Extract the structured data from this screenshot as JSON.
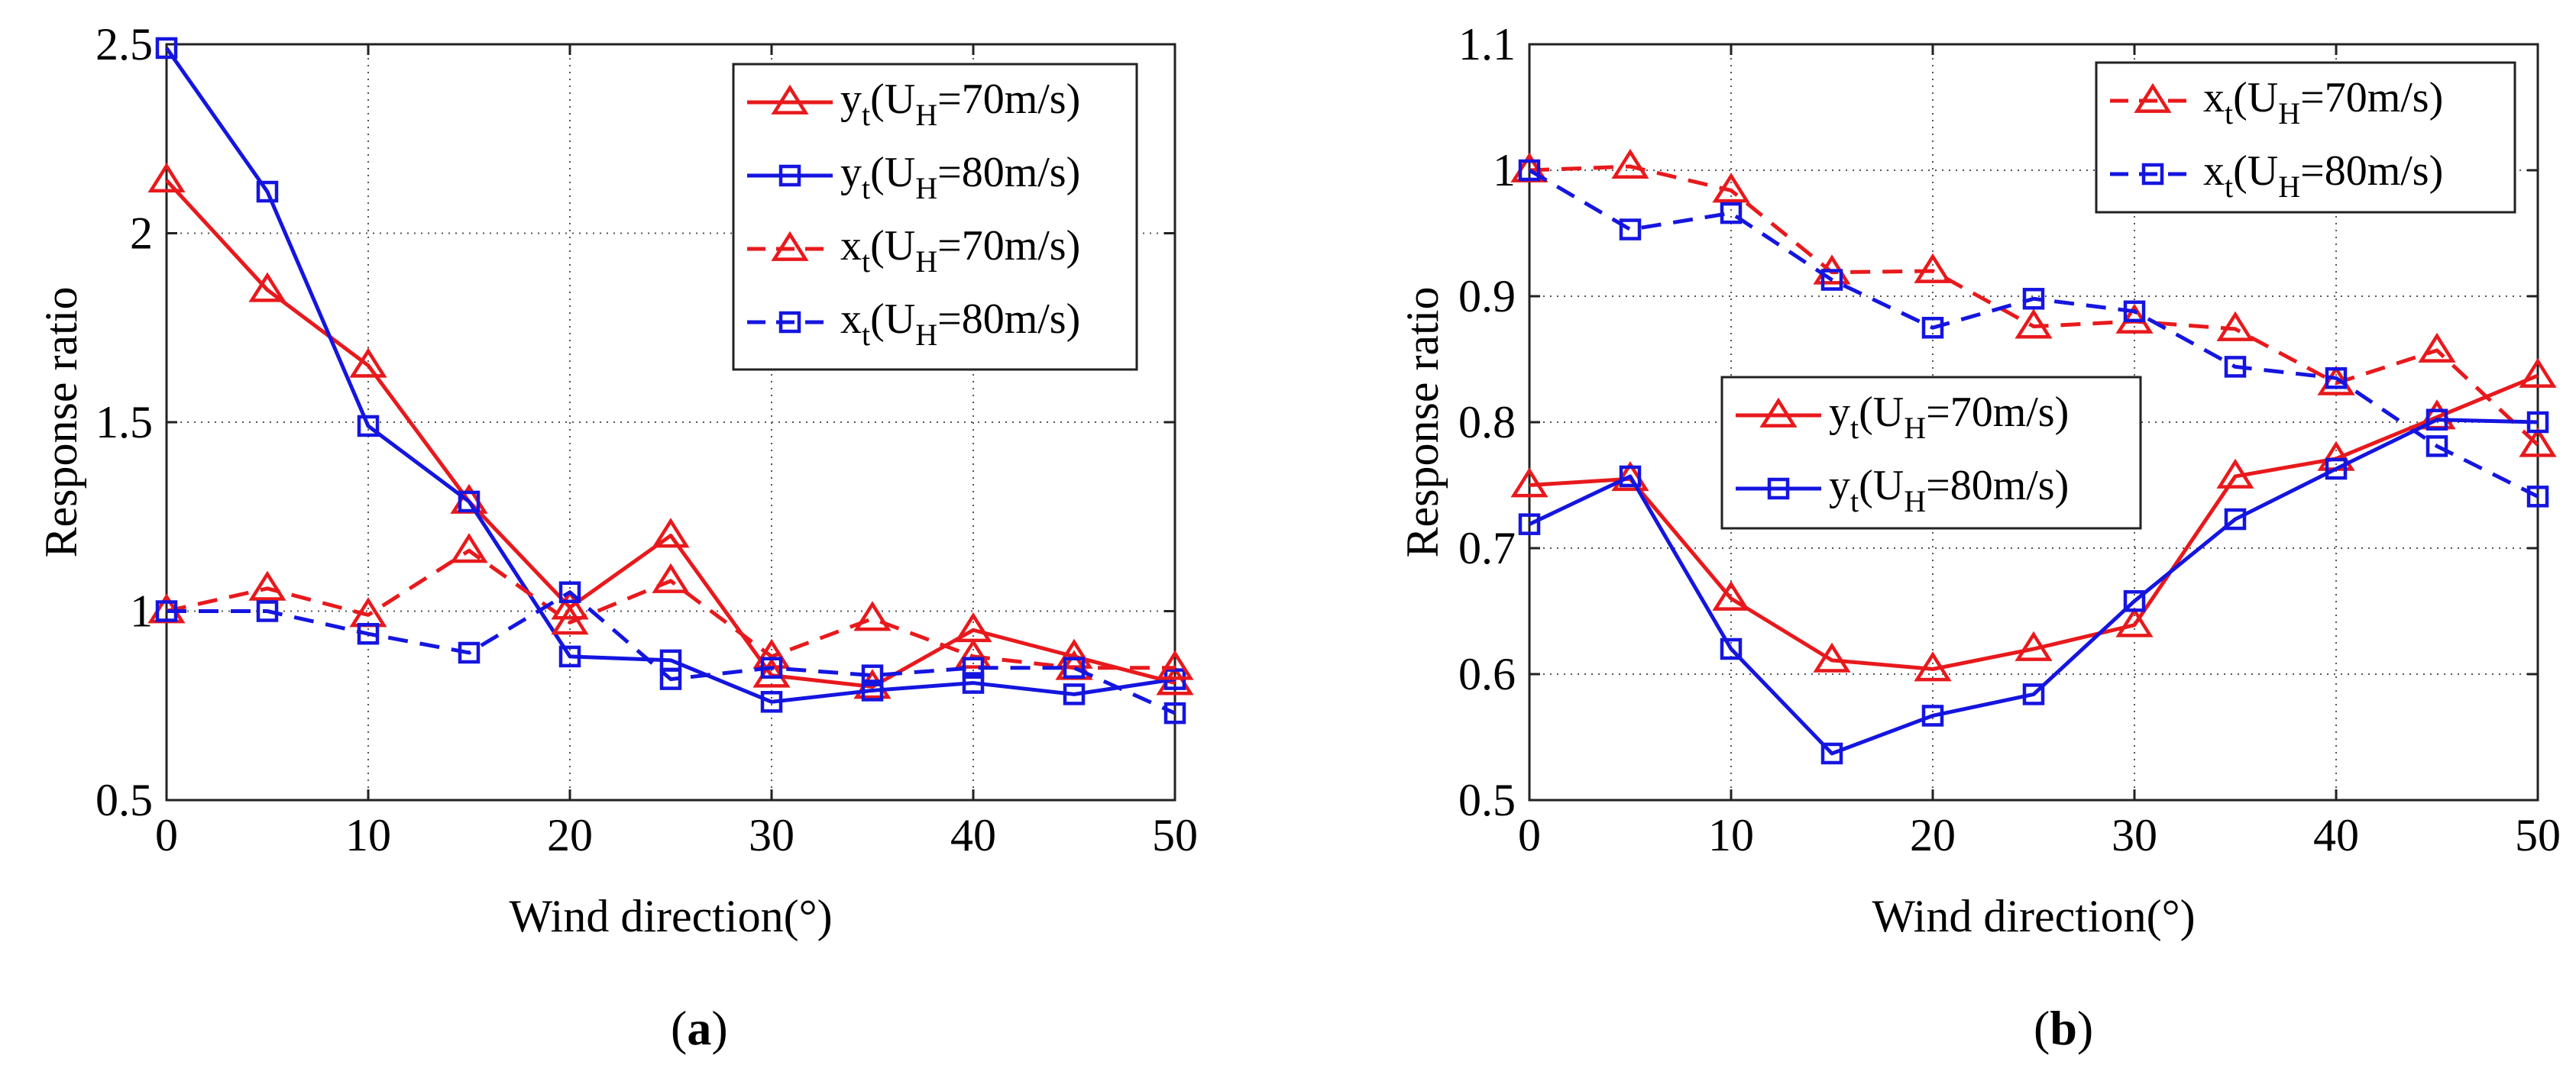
{
  "chart_data": [
    {
      "id": "a",
      "type": "line",
      "caption_letter": "a",
      "xlabel": "Wind direction(°)",
      "ylabel": "Response ratio",
      "xlim": [
        0,
        50
      ],
      "ylim": [
        0.5,
        2.5
      ],
      "xticks": [
        0,
        10,
        20,
        30,
        40,
        50
      ],
      "xtick_labels": [
        "0",
        "10",
        "20",
        "30",
        "40",
        "50"
      ],
      "yticks": [
        0.5,
        1,
        1.5,
        2,
        2.5
      ],
      "ytick_labels": [
        "0.5",
        "1",
        "1.5",
        "2",
        "2.5"
      ],
      "grid": true,
      "x": [
        0,
        5,
        10,
        15,
        20,
        25,
        30,
        35,
        40,
        45,
        50
      ],
      "legends": [
        {
          "position": "top-right",
          "entries": [
            0,
            1,
            2,
            3
          ]
        }
      ],
      "series": [
        {
          "var": "y",
          "speed": "70m/s",
          "color": "#e8191c",
          "dash": false,
          "marker": "triangle",
          "values": [
            2.14,
            1.85,
            1.65,
            1.29,
            1.01,
            1.2,
            0.83,
            0.8,
            0.95,
            0.88,
            0.81
          ]
        },
        {
          "var": "y",
          "speed": "80m/s",
          "color": "#1515e0",
          "dash": false,
          "marker": "square",
          "values": [
            2.49,
            2.11,
            1.49,
            1.29,
            0.88,
            0.87,
            0.76,
            0.79,
            0.81,
            0.78,
            0.82
          ]
        },
        {
          "var": "x",
          "speed": "70m/s",
          "color": "#e8191c",
          "dash": true,
          "marker": "triangle",
          "values": [
            1.0,
            1.06,
            0.99,
            1.16,
            0.97,
            1.08,
            0.88,
            0.98,
            0.88,
            0.85,
            0.85
          ]
        },
        {
          "var": "x",
          "speed": "80m/s",
          "color": "#1515e0",
          "dash": true,
          "marker": "square",
          "values": [
            1.0,
            1.0,
            0.94,
            0.89,
            1.05,
            0.82,
            0.85,
            0.83,
            0.85,
            0.85,
            0.73
          ]
        }
      ]
    },
    {
      "id": "b",
      "type": "line",
      "caption_letter": "b",
      "xlabel": "Wind direction(°)",
      "ylabel": "Response ratio",
      "xlim": [
        0,
        50
      ],
      "ylim": [
        0.5,
        1.1
      ],
      "xticks": [
        0,
        10,
        20,
        30,
        40,
        50
      ],
      "xtick_labels": [
        "0",
        "10",
        "20",
        "30",
        "40",
        "50"
      ],
      "yticks": [
        0.5,
        0.6,
        0.7,
        0.8,
        0.9,
        1.0,
        1.1
      ],
      "ytick_labels": [
        "0.5",
        "0.6",
        "0.7",
        "0.8",
        "0.9",
        "1",
        "1.1"
      ],
      "grid": true,
      "x": [
        0,
        5,
        10,
        15,
        20,
        25,
        30,
        35,
        40,
        45,
        50
      ],
      "legends": [
        {
          "position": "top-right",
          "entries": [
            0,
            1
          ]
        },
        {
          "position": "center-left",
          "entries": [
            2,
            3
          ]
        }
      ],
      "series": [
        {
          "var": "x",
          "speed": "70m/s",
          "color": "#e8191c",
          "dash": true,
          "marker": "triangle",
          "values": [
            1.0,
            1.003,
            0.984,
            0.919,
            0.92,
            0.876,
            0.88,
            0.874,
            0.831,
            0.857,
            0.782
          ]
        },
        {
          "var": "x",
          "speed": "80m/s",
          "color": "#1515e0",
          "dash": true,
          "marker": "square",
          "values": [
            1.0,
            0.953,
            0.966,
            0.913,
            0.875,
            0.898,
            0.888,
            0.844,
            0.835,
            0.781,
            0.741
          ]
        },
        {
          "var": "y",
          "speed": "70m/s",
          "color": "#e8191c",
          "dash": false,
          "marker": "triangle",
          "values": [
            0.75,
            0.755,
            0.66,
            0.611,
            0.604,
            0.62,
            0.639,
            0.757,
            0.771,
            0.804,
            0.837
          ]
        },
        {
          "var": "y",
          "speed": "80m/s",
          "color": "#1515e0",
          "dash": false,
          "marker": "square",
          "values": [
            0.719,
            0.757,
            0.62,
            0.537,
            0.567,
            0.584,
            0.658,
            0.723,
            0.763,
            0.802,
            0.8
          ]
        }
      ]
    }
  ],
  "legend_template": {
    "subscript_t": "t",
    "open_paren": "(U",
    "subscript_H": "H",
    "equals": "="
  },
  "captions": {
    "open": "(",
    "close": ")"
  }
}
